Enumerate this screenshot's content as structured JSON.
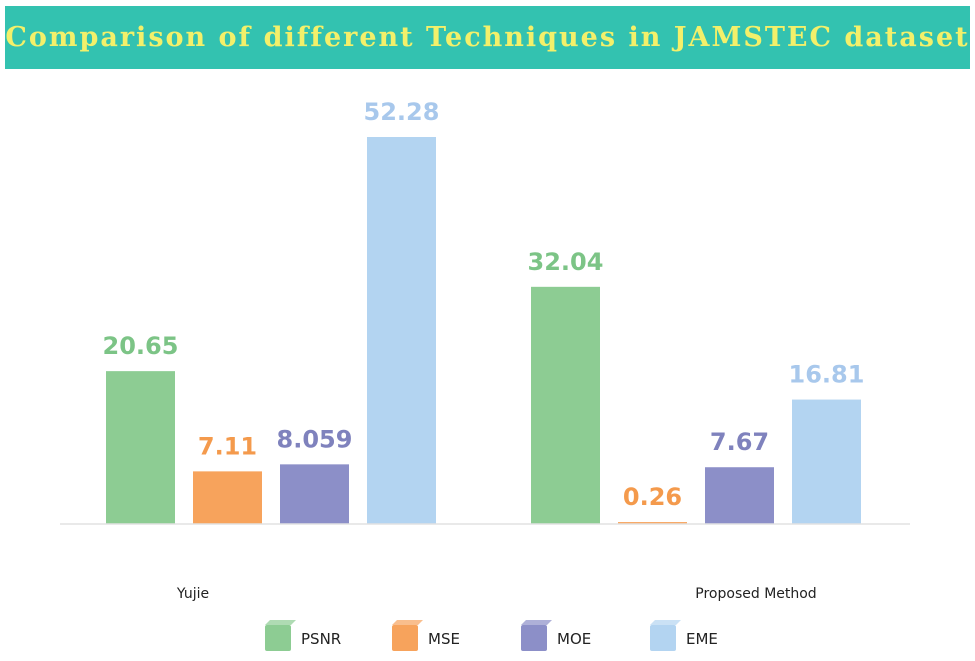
{
  "chart_data": {
    "type": "bar",
    "title": "Comparison of different Techniques in JAMSTEC dataset",
    "categories": [
      "Yujie",
      "Proposed Method"
    ],
    "series": [
      {
        "name": "PSNR",
        "values": [
          20.65,
          32.04
        ],
        "labels": [
          "20.65",
          "32.04"
        ],
        "color": "#8dcc93",
        "label_color": "#7cc486"
      },
      {
        "name": "MSE",
        "values": [
          7.11,
          0.26
        ],
        "labels": [
          "7.11",
          "0.26"
        ],
        "color": "#f7a35c",
        "label_color": "#f49a4c"
      },
      {
        "name": "MOE",
        "values": [
          8.059,
          7.67
        ],
        "labels": [
          "8.059",
          "7.67"
        ],
        "color": "#8c8fc8",
        "label_color": "#7f82bd"
      },
      {
        "name": "EME",
        "values": [
          52.28,
          16.81
        ],
        "labels": [
          "52.28",
          "16.81"
        ],
        "color": "#b3d4f1",
        "label_color": "#a8c8ec"
      }
    ],
    "xlabel": "",
    "ylabel": "",
    "ylim": [
      0,
      52.28
    ],
    "grid": false,
    "legend": "bottom"
  }
}
